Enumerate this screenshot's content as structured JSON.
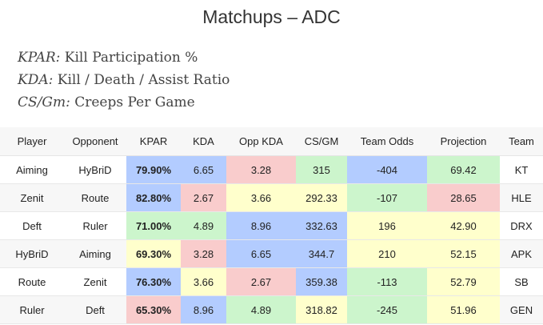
{
  "title": "Matchups – ADC",
  "glossary": [
    {
      "term": "KPAR:",
      "definition": "Kill Participation %"
    },
    {
      "term": "KDA:",
      "definition": "Kill / Death / Assist Ratio"
    },
    {
      "term": "CS/Gm:",
      "definition": "Creeps Per Game"
    }
  ],
  "table": {
    "headers": [
      "Player",
      "Opponent",
      "KPAR",
      "KDA",
      "Opp KDA",
      "CS/GM",
      "Team Odds",
      "Projection",
      "Team"
    ],
    "rows": [
      [
        "Aiming",
        "HyBriD",
        "79.90%",
        "6.65",
        "3.28",
        "315",
        "-404",
        "69.42",
        "KT"
      ],
      [
        "Zenit",
        "Route",
        "82.80%",
        "2.67",
        "3.66",
        "292.33",
        "-107",
        "28.65",
        "HLE"
      ],
      [
        "Deft",
        "Ruler",
        "71.00%",
        "4.89",
        "8.96",
        "332.63",
        "196",
        "42.90",
        "DRX"
      ],
      [
        "HyBriD",
        "Aiming",
        "69.30%",
        "3.28",
        "6.65",
        "344.7",
        "210",
        "52.15",
        "APK"
      ],
      [
        "Route",
        "Zenit",
        "76.30%",
        "3.66",
        "2.67",
        "359.38",
        "-113",
        "52.79",
        "SB"
      ],
      [
        "Ruler",
        "Deft",
        "65.30%",
        "8.96",
        "4.89",
        "318.82",
        "-245",
        "51.96",
        "GEN"
      ]
    ],
    "cell_colors": [
      [
        "",
        "",
        "blue",
        "blue",
        "red",
        "green",
        "blue",
        "green",
        ""
      ],
      [
        "",
        "",
        "blue",
        "red",
        "yellow",
        "yellow",
        "green",
        "red",
        ""
      ],
      [
        "",
        "",
        "green",
        "green",
        "blue",
        "blue",
        "yellow",
        "yellow",
        ""
      ],
      [
        "",
        "",
        "yellow",
        "red",
        "blue",
        "blue",
        "yellow",
        "yellow",
        ""
      ],
      [
        "",
        "",
        "blue",
        "yellow",
        "red",
        "blue",
        "green",
        "yellow",
        ""
      ],
      [
        "",
        "",
        "red",
        "blue",
        "green",
        "yellow",
        "green",
        "yellow",
        ""
      ]
    ],
    "palette": {
      "blue": "#b3ccff",
      "green": "#ccf5cc",
      "red": "#f9cccc",
      "yellow": "#ffffcc"
    }
  }
}
